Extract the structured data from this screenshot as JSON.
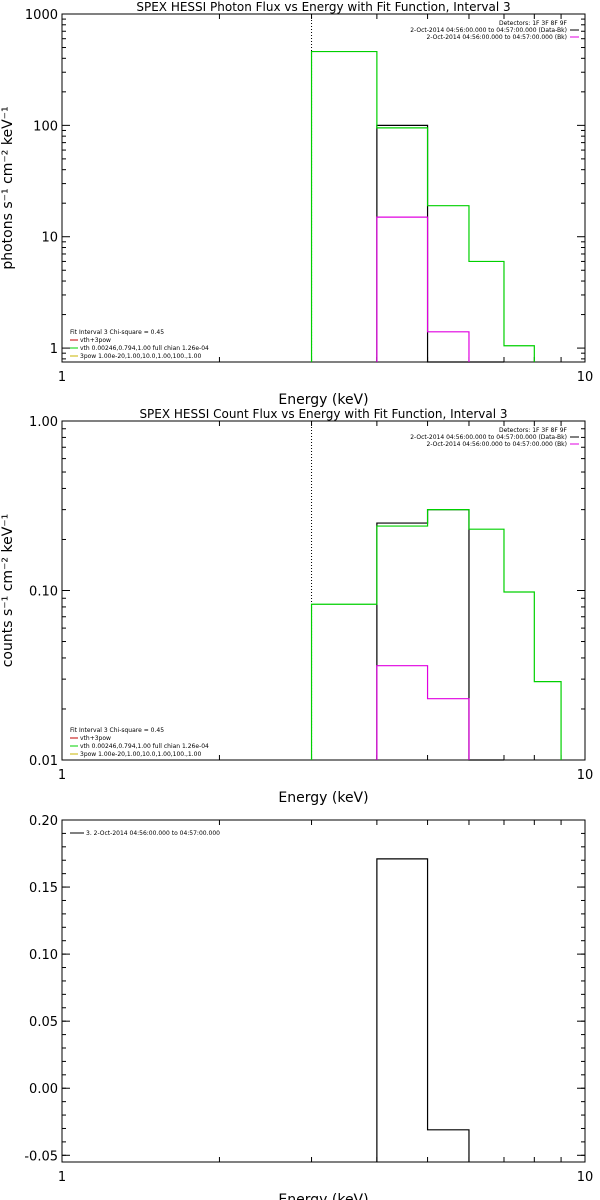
{
  "chart_data": [
    {
      "type": "step",
      "title": "SPEX HESSI Photon Flux vs Energy with Fit Function, Interval 3",
      "xlabel": "Energy (keV)",
      "ylabel": "photons s⁻¹ cm⁻² keV⁻¹",
      "xscale": "log",
      "yscale": "log",
      "xlim": [
        1,
        10
      ],
      "ylim": [
        0.75,
        1000
      ],
      "xticks": [
        1,
        10
      ],
      "xtick_labels": [
        "1",
        "10"
      ],
      "yticks": [
        1,
        10,
        100,
        1000
      ],
      "ytick_labels": [
        "1",
        "10",
        "100",
        "1000"
      ],
      "vline": 3,
      "legend_top": [
        "Detectors: 1F 3F 8F 9F",
        "2-Oct-2014 04:56:00.000 to 04:57:00.000 (Data-Bk)",
        "2-Oct-2014 04:56:00.000 to 04:57:00.000 (Bk)"
      ],
      "legend_top_colors": [
        "",
        "#000000",
        "#e000e0"
      ],
      "legend_bottom": [
        "Fit Interval 3   Chi-square = 0.45",
        "vth+3pow",
        "vth 0.00246,0.794,1.00   full chian 1.26e-04",
        "3pow 1.00e-20,1.00,10.0,1.00,100.,1.00"
      ],
      "legend_bottom_colors": [
        "",
        "#c00000",
        "#00d000",
        "#c8b400"
      ],
      "series": [
        {
          "color": "#000000",
          "edges": [
            4,
            5,
            6,
            7
          ],
          "values": [
            100,
            0,
            0
          ]
        },
        {
          "color": "#00d000",
          "edges": [
            3,
            4,
            5,
            6,
            7,
            8
          ],
          "values": [
            460,
            95,
            19,
            6,
            1.05
          ]
        },
        {
          "color": "#e000e0",
          "edges": [
            4,
            5,
            6
          ],
          "values": [
            15,
            1.4
          ]
        }
      ]
    },
    {
      "type": "step",
      "title": "SPEX HESSI Count Flux vs Energy with Fit Function, Interval 3",
      "xlabel": "Energy (keV)",
      "ylabel": "counts s⁻¹ cm⁻² keV⁻¹",
      "xscale": "log",
      "yscale": "log",
      "xlim": [
        1,
        10
      ],
      "ylim": [
        0.01,
        1
      ],
      "xticks": [
        1,
        10
      ],
      "xtick_labels": [
        "1",
        "10"
      ],
      "yticks": [
        0.01,
        0.1,
        1
      ],
      "ytick_labels": [
        "0.01",
        "0.10",
        "1.00"
      ],
      "vline": 3,
      "legend_top": [
        "Detectors: 1F 3F 8F 9F",
        "2-Oct-2014 04:56:00.000 to 04:57:00.000 (Data-Bk)",
        "2-Oct-2014 04:56:00.000 to 04:57:00.000 (Bk)"
      ],
      "legend_top_colors": [
        "",
        "#000000",
        "#e000e0"
      ],
      "legend_bottom": [
        "Fit Interval 3   Chi-square = 0.45",
        "vth+3pow",
        "vth 0.00246,0.794,1.00   full chian 1.26e-04",
        "3pow 1.00e-20,1.00,10.0,1.00,100.,1.00"
      ],
      "legend_bottom_colors": [
        "",
        "#c00000",
        "#00d000",
        "#c8b400"
      ],
      "series": [
        {
          "color": "#000000",
          "edges": [
            4,
            5,
            6,
            7
          ],
          "values": [
            0.25,
            0.3,
            0.01
          ]
        },
        {
          "color": "#00d000",
          "edges": [
            3,
            4,
            5,
            6,
            7,
            8,
            9
          ],
          "values": [
            0.083,
            0.24,
            0.3,
            0.23,
            0.098,
            0.029
          ]
        },
        {
          "color": "#e000e0",
          "edges": [
            4,
            5,
            6
          ],
          "values": [
            0.036,
            0.023
          ]
        }
      ]
    },
    {
      "type": "step",
      "title": "",
      "xlabel": "Energy (keV)",
      "ylabel": "",
      "xscale": "log",
      "yscale": "linear",
      "xlim": [
        1,
        10
      ],
      "ylim": [
        -0.055,
        0.2
      ],
      "xticks": [
        1,
        10
      ],
      "xtick_labels": [
        "1",
        "10"
      ],
      "yticks": [
        -0.05,
        0.0,
        0.05,
        0.1,
        0.15,
        0.2
      ],
      "ytick_labels": [
        "-0.05",
        "0.00",
        "0.05",
        "0.10",
        "0.15",
        "0.20"
      ],
      "legend_left": "3. 2-Oct-2014 04:56:00.000 to 04:57:00.000",
      "series": [
        {
          "color": "#000000",
          "edges": [
            4,
            5,
            6
          ],
          "values": [
            0.171,
            -0.031
          ],
          "drop_to": -0.055
        }
      ]
    }
  ]
}
